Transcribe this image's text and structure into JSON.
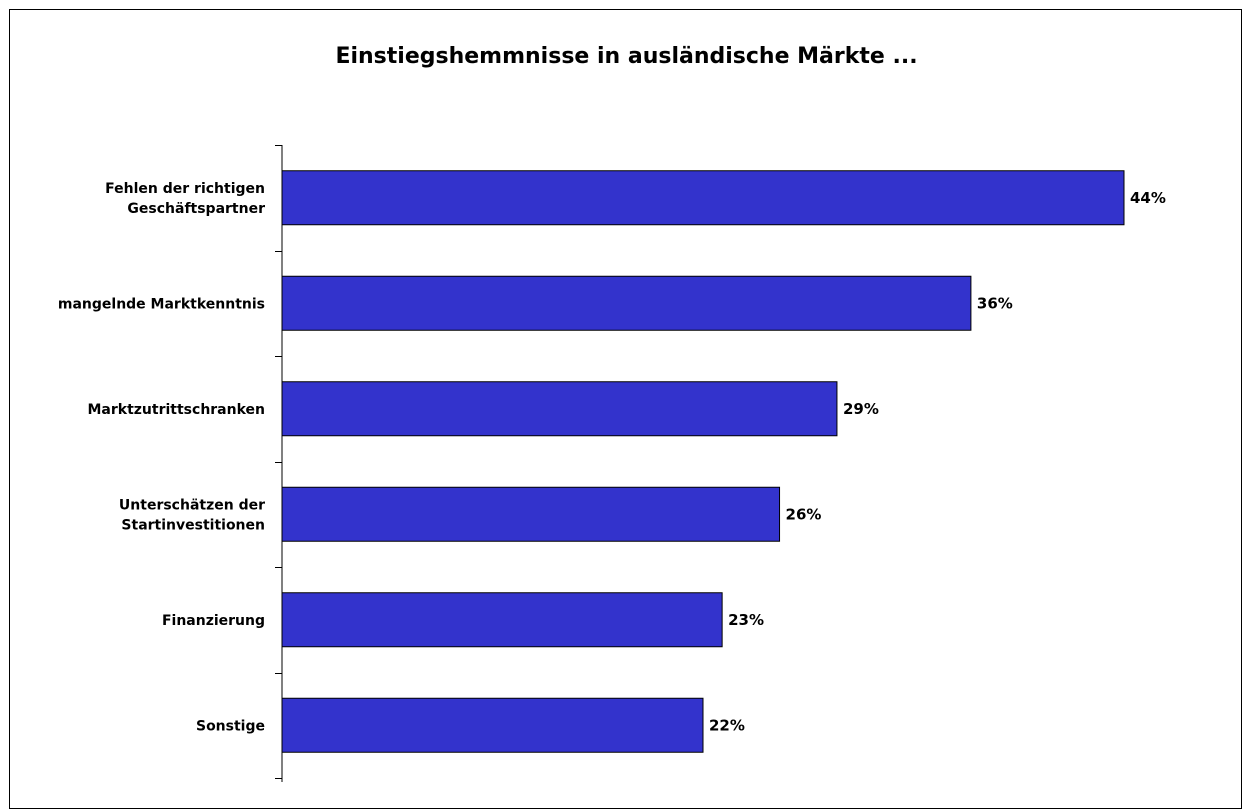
{
  "chart_data": {
    "type": "bar",
    "orientation": "horizontal",
    "title": "Einstiegshemmnisse in ausländische Märkte ...",
    "categories": [
      "Fehlen der richtigen\nGeschäftspartner",
      "mangelnde Marktkenntnis",
      "Marktzutrittschranken",
      "Unterschätzen der\nStartinvestitionen",
      "Finanzierung",
      "Sonstige"
    ],
    "values": [
      44,
      36,
      29,
      26,
      23,
      22
    ],
    "value_labels": [
      "44%",
      "36%",
      "29%",
      "26%",
      "23%",
      "22%"
    ],
    "unit": "%",
    "xlim": [
      0,
      50
    ],
    "grid": false,
    "legend": "none",
    "bar_color": "#3333CC",
    "bar_outline": "#000000"
  }
}
